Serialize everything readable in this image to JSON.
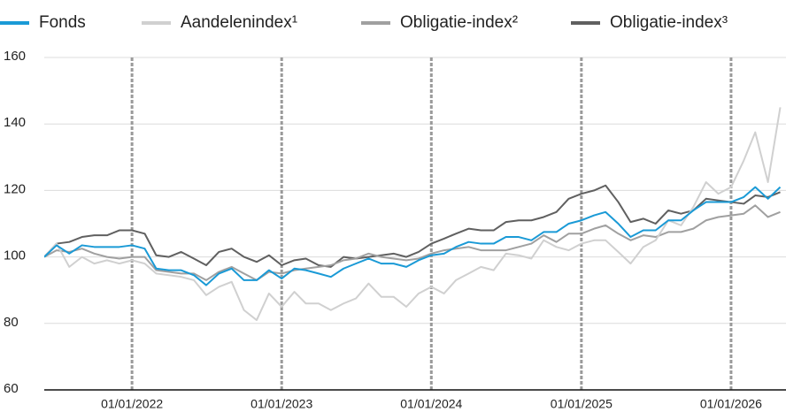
{
  "chart_data": {
    "type": "line",
    "x": [
      "2021-06-01",
      "2021-07-01",
      "2021-08-01",
      "2021-09-01",
      "2021-10-01",
      "2021-11-01",
      "2021-12-01",
      "2022-01-01",
      "2022-02-01",
      "2022-03-01",
      "2022-04-01",
      "2022-05-01",
      "2022-06-01",
      "2022-07-01",
      "2022-08-01",
      "2022-09-01",
      "2022-10-01",
      "2022-11-01",
      "2022-12-01",
      "2023-01-01",
      "2023-02-01",
      "2023-03-01",
      "2023-04-01",
      "2023-05-01",
      "2023-06-01",
      "2023-07-01",
      "2023-08-01",
      "2023-09-01",
      "2023-10-01",
      "2023-11-01",
      "2023-12-01",
      "2024-01-01",
      "2024-02-01",
      "2024-03-01",
      "2024-04-01",
      "2024-05-01",
      "2024-06-01",
      "2024-07-01",
      "2024-08-01",
      "2024-09-01",
      "2024-10-01",
      "2024-11-01",
      "2024-12-01",
      "2025-01-01",
      "2025-02-01",
      "2025-03-01",
      "2025-04-01",
      "2025-05-01",
      "2025-06-01",
      "2025-07-01",
      "2025-08-01",
      "2025-09-01",
      "2025-10-01",
      "2025-11-01",
      "2025-12-01",
      "2026-01-01",
      "2026-02-01",
      "2026-03-01",
      "2026-04-01",
      "2026-05-01"
    ],
    "series": [
      {
        "name": "Fonds",
        "color": "#1a9ad6",
        "values": [
          100,
          103.5,
          101,
          103.5,
          103,
          103,
          103,
          103.5,
          102.5,
          96.5,
          96,
          96,
          94.5,
          91.5,
          95,
          96.5,
          93,
          93,
          96,
          93.5,
          96.5,
          96,
          95,
          94,
          96.5,
          98,
          99.5,
          98,
          98,
          97,
          99,
          100.5,
          101,
          103,
          104.5,
          104,
          104,
          106,
          106,
          105,
          107.5,
          107.5,
          110,
          111,
          112.5,
          113.5,
          110,
          106,
          108,
          108,
          111,
          111,
          114,
          116.5,
          116.5,
          116.5,
          118,
          121,
          117.5,
          121
        ]
      },
      {
        "name": "Aandelenindex¹",
        "color": "#d0d0d0",
        "values": [
          100,
          104,
          97,
          100,
          98,
          99,
          98,
          99,
          98,
          95,
          94.5,
          94,
          93,
          88.5,
          91,
          92.5,
          84,
          81,
          89,
          85,
          89.5,
          86,
          86,
          84,
          86,
          87.5,
          92,
          88,
          88,
          85,
          89,
          91,
          89,
          93,
          95,
          97,
          96,
          101,
          100.5,
          99.5,
          105,
          103,
          102,
          104,
          105,
          105,
          101.5,
          98,
          103,
          105,
          111,
          109.5,
          115,
          122.5,
          119,
          121,
          129,
          137.5,
          122.5,
          145
        ]
      },
      {
        "name": "Obligatie-index²",
        "color": "#a0a0a0",
        "values": [
          100,
          102,
          101.5,
          102.5,
          101,
          100,
          99.5,
          100,
          100,
          96,
          95.5,
          95,
          95,
          93,
          95.5,
          97,
          95,
          93,
          95.5,
          95,
          96,
          96.5,
          97,
          97.5,
          99,
          99.5,
          101,
          100,
          99.5,
          99,
          99.5,
          101,
          102,
          102.5,
          103,
          102,
          102,
          102,
          103,
          104,
          106.5,
          104.5,
          107,
          107,
          108.5,
          109.5,
          107,
          105,
          106.5,
          106,
          107.5,
          107.5,
          108.5,
          111,
          112,
          112.5,
          113,
          115.5,
          112,
          113.5
        ]
      },
      {
        "name": "Obligatie-index³",
        "color": "#606060",
        "values": [
          100,
          104,
          104.5,
          106,
          106.5,
          106.5,
          108,
          108,
          107,
          100.5,
          100,
          101.5,
          99.5,
          97.5,
          101.5,
          102.5,
          100,
          98.5,
          100.5,
          97.5,
          99,
          99.5,
          97.5,
          97,
          100,
          99.5,
          100,
          100.5,
          101,
          100,
          101.5,
          104,
          105.5,
          107,
          108.5,
          108,
          108,
          110.5,
          111,
          111,
          112,
          113.5,
          117.5,
          119,
          120,
          121.5,
          116.5,
          110.5,
          111.5,
          110,
          114,
          113,
          114,
          117.5,
          117,
          116.5,
          116,
          118.5,
          118,
          119.5
        ]
      }
    ],
    "xlim": [
      "2021-06-01",
      "2026-05-15"
    ],
    "xticks": [
      {
        "value": "2022-01-01",
        "label": "01/01/2022"
      },
      {
        "value": "2023-01-01",
        "label": "01/01/2023"
      },
      {
        "value": "2024-01-01",
        "label": "01/01/2024"
      },
      {
        "value": "2025-01-01",
        "label": "01/01/2025"
      },
      {
        "value": "2026-01-01",
        "label": "01/01/2026"
      }
    ],
    "ylim": [
      60,
      160
    ],
    "yticks": [
      60,
      80,
      100,
      120,
      140,
      160
    ],
    "grid": true,
    "legend": "top"
  }
}
